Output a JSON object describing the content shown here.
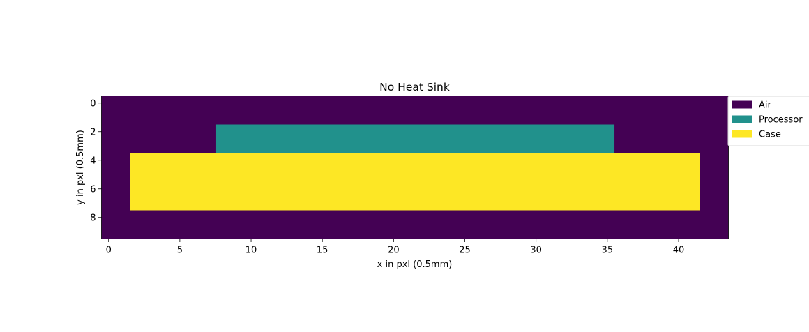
{
  "chart_data": {
    "type": "heatmap",
    "title": "No Heat Sink",
    "xlabel": "x in pxl (0.5mm)",
    "ylabel": "y in pxl (0.5mm)",
    "grid": false,
    "xlim": [
      -0.5,
      43.5
    ],
    "ylim": [
      9.5,
      -0.5
    ],
    "xticks": [
      0,
      5,
      10,
      15,
      20,
      25,
      30,
      35,
      40
    ],
    "yticks": [
      0,
      2,
      4,
      6,
      8
    ],
    "legend_placement": "upper-right-outside",
    "background": "Air",
    "materials": [
      {
        "name": "Air",
        "color": "#440154"
      },
      {
        "name": "Processor",
        "color": "#21918c"
      },
      {
        "name": "Case",
        "color": "#fde725"
      }
    ],
    "regions": [
      {
        "material": "Processor",
        "x_range": [
          8,
          35
        ],
        "y_range": [
          2,
          3
        ]
      },
      {
        "material": "Case",
        "x_range": [
          2,
          41
        ],
        "y_range": [
          4,
          7
        ]
      }
    ]
  }
}
